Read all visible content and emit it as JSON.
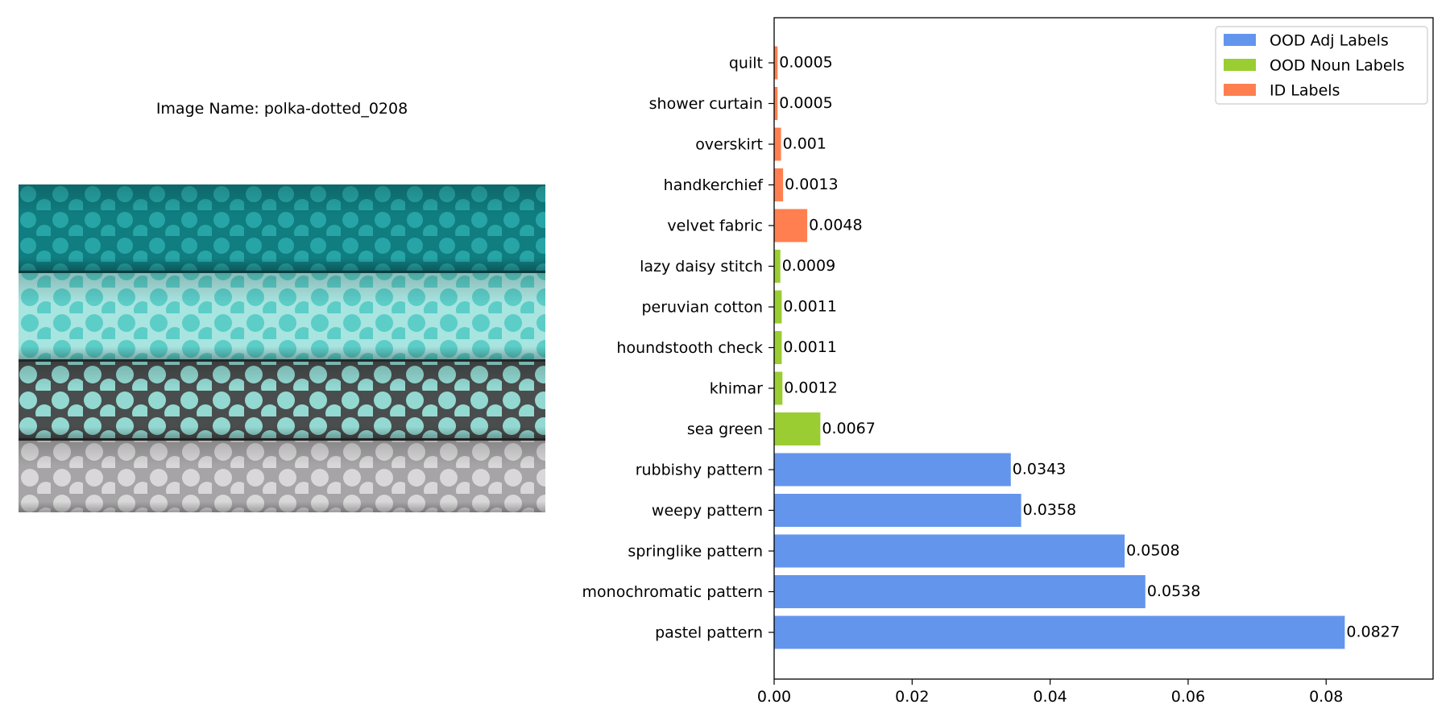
{
  "image_panel": {
    "title": "Image Name: polka-dotted_0208",
    "photo": "polka-dotted fabric rolls"
  },
  "colors": {
    "ood_adj": "#6495ED",
    "ood_noun": "#9ACD32",
    "id": "#FF7F50"
  },
  "chart_data": {
    "type": "bar",
    "orientation": "horizontal",
    "categories": [
      "quilt",
      "shower curtain",
      "overskirt",
      "handkerchief",
      "velvet fabric",
      "lazy daisy stitch",
      "peruvian cotton",
      "houndstooth check",
      "khimar",
      "sea green",
      "rubbishy pattern",
      "weepy pattern",
      "springlike pattern",
      "monochromatic pattern",
      "pastel pattern"
    ],
    "values": [
      0.0005,
      0.0005,
      0.001,
      0.0013,
      0.0048,
      0.0009,
      0.0011,
      0.0011,
      0.0012,
      0.0067,
      0.0343,
      0.0358,
      0.0508,
      0.0538,
      0.0827
    ],
    "value_labels": [
      "0.0005",
      "0.0005",
      "0.001",
      "0.0013",
      "0.0048",
      "0.0009",
      "0.0011",
      "0.0011",
      "0.0012",
      "0.0067",
      "0.0343",
      "0.0358",
      "0.0508",
      "0.0538",
      "0.0827"
    ],
    "groups": [
      "id",
      "id",
      "id",
      "id",
      "id",
      "ood_noun",
      "ood_noun",
      "ood_noun",
      "ood_noun",
      "ood_noun",
      "ood_adj",
      "ood_adj",
      "ood_adj",
      "ood_adj",
      "ood_adj"
    ],
    "xlim": [
      0,
      0.0955
    ],
    "xticks": [
      "0.00",
      "0.02",
      "0.04",
      "0.06",
      "0.08"
    ],
    "xtick_values": [
      0,
      0.02,
      0.04,
      0.06,
      0.08
    ],
    "legend": [
      {
        "label": "OOD Adj Labels",
        "group": "ood_adj"
      },
      {
        "label": "OOD Noun Labels",
        "group": "ood_noun"
      },
      {
        "label": "ID Labels",
        "group": "id"
      }
    ],
    "legend_position": "top-right",
    "grid": false
  }
}
